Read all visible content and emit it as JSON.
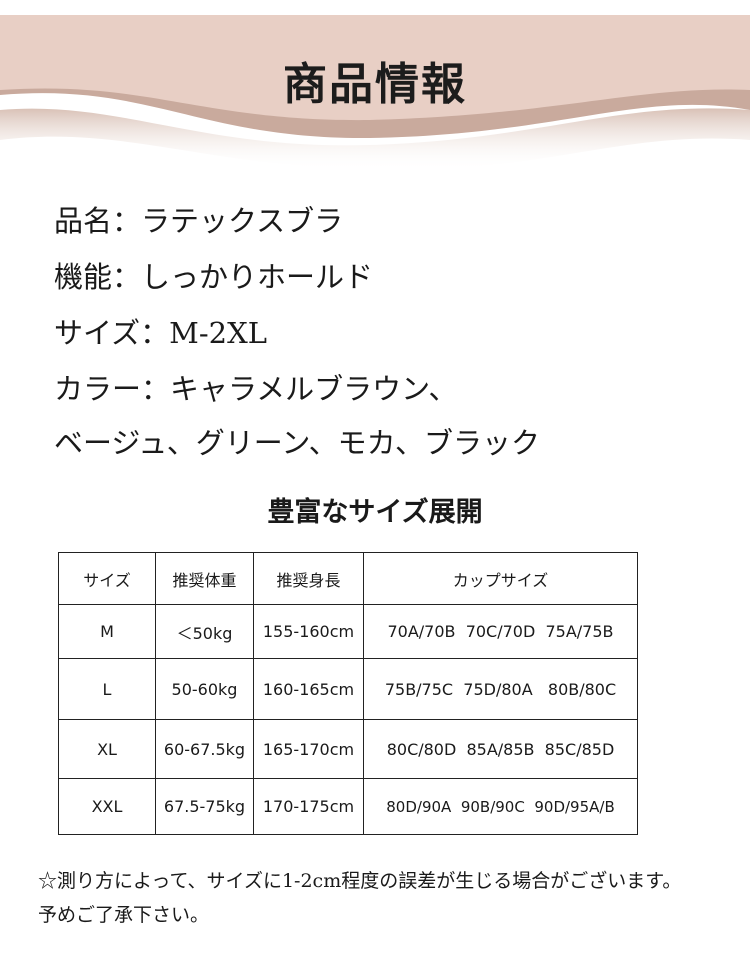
{
  "header": {
    "title": "商品情報",
    "band_color": "#e8cfc5"
  },
  "info": [
    "品名：ラテックスブラ",
    "機能：しっかりホールド",
    "サイズ：M-2XL",
    "カラー：キャラメルブラウン、",
    "ベージュ、グリーン、モカ、ブラック"
  ],
  "size_section": {
    "title": "豊富なサイズ展開"
  },
  "table": {
    "headers": [
      "サイズ",
      "推奨体重",
      "推奨身長",
      "カップサイズ"
    ],
    "rows": [
      [
        "M",
        "＜50kg",
        "155-160cm",
        "70A/70B  70C/70D  75A/75B"
      ],
      [
        "L",
        "50-60kg",
        "160-165cm",
        "75B/75C  75D/80A   80B/80C"
      ],
      [
        "XL",
        "60-67.5kg",
        "165-170cm",
        "80C/80D  85A/85B  85C/85D"
      ],
      [
        "XXL",
        "67.5-75kg",
        "170-175cm",
        "80D/90A  90B/90C  90D/95A/B"
      ]
    ]
  },
  "note": [
    "☆測り方によって、サイズに1-2cm程度の誤差が生じる場合がございます。",
    "予めご了承下さい。"
  ]
}
